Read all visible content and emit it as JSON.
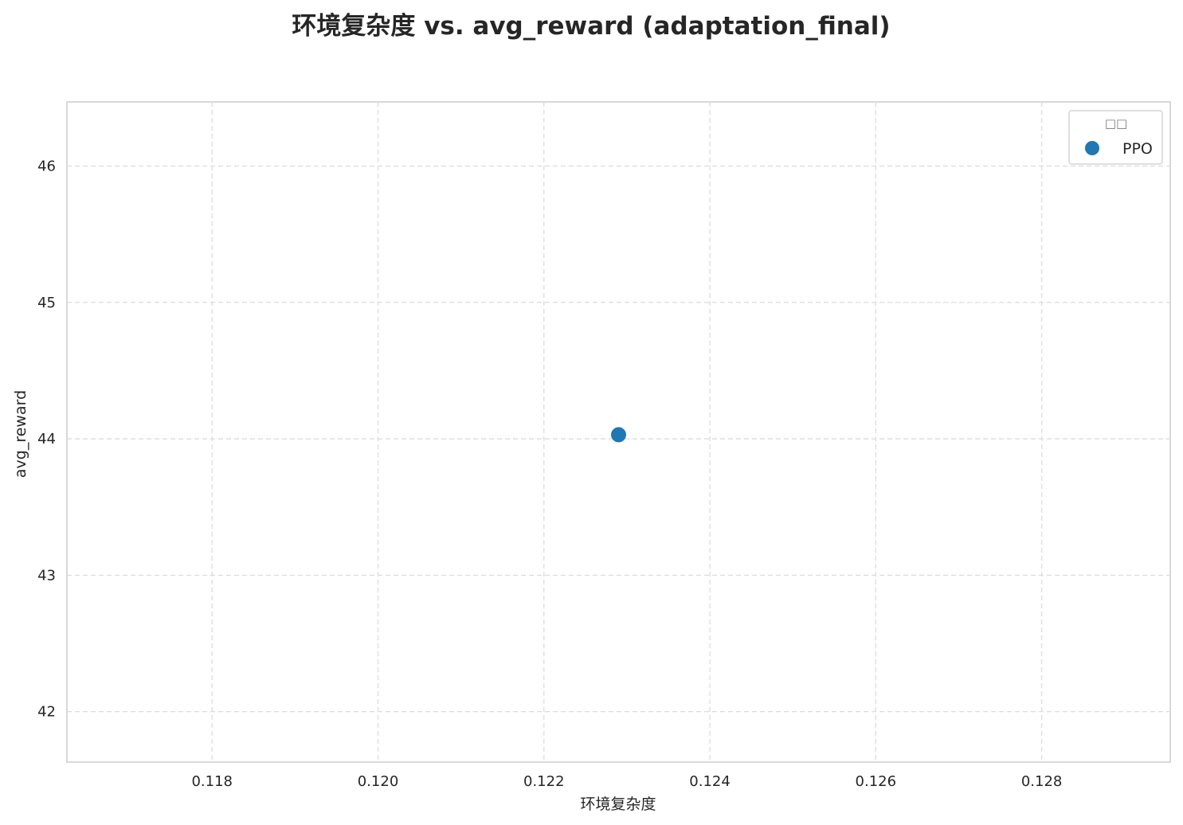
{
  "chart_data": {
    "type": "scatter",
    "title": "环境复杂度 vs. avg_reward (adaptation_final)",
    "xlabel": "环境复杂度",
    "ylabel": "avg_reward",
    "xlim": [
      0.11625,
      0.12955
    ],
    "ylim": [
      41.63,
      46.47
    ],
    "xticks": [
      0.118,
      0.12,
      0.122,
      0.124,
      0.126,
      0.128
    ],
    "xtick_labels": [
      "0.118",
      "0.120",
      "0.122",
      "0.124",
      "0.126",
      "0.128"
    ],
    "yticks": [
      42,
      43,
      44,
      45,
      46
    ],
    "ytick_labels": [
      "42",
      "43",
      "44",
      "45",
      "46"
    ],
    "grid": true,
    "legend": {
      "title": "□□",
      "placement": "top-right"
    },
    "series": [
      {
        "name": "PPO",
        "color": "#1f77b4",
        "points": [
          {
            "x": 0.1229,
            "y": 44.03
          }
        ]
      }
    ]
  }
}
